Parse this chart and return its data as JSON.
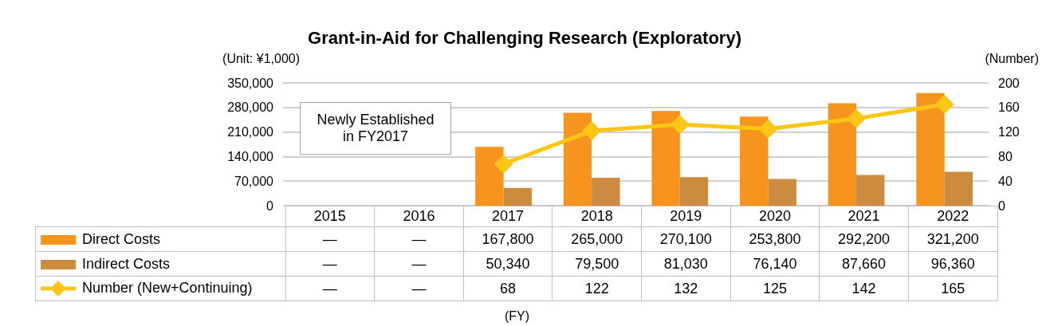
{
  "chart_data": {
    "type": "bar",
    "title": "Grant-in-Aid for Challenging Research (Exploratory)",
    "ylabel": "(Unit: ¥1,000)",
    "y2label": "(Number)",
    "categories": [
      "2015",
      "2016",
      "2017",
      "2018",
      "2019",
      "2020",
      "2021",
      "2022"
    ],
    "series": [
      {
        "name": "Direct Costs",
        "color": "#f7941d",
        "values": [
          null,
          null,
          167800,
          265000,
          270100,
          253800,
          292200,
          321200
        ],
        "value_labels": [
          "—",
          "—",
          "167,800",
          "265,000",
          "270,100",
          "253,800",
          "292,200",
          "321,200"
        ]
      },
      {
        "name": "Indirect Costs",
        "color": "#cd8b40",
        "values": [
          null,
          null,
          50340,
          79500,
          81030,
          76140,
          87660,
          96360
        ],
        "value_labels": [
          "—",
          "—",
          "50,340",
          "79,500",
          "81,030",
          "76,140",
          "87,660",
          "96,360"
        ]
      },
      {
        "name": "Number (New+Continuing)",
        "type": "line",
        "axis": "y2",
        "color": "#fcc614",
        "values": [
          null,
          null,
          68,
          122,
          132,
          125,
          142,
          165
        ],
        "value_labels": [
          "—",
          "—",
          "68",
          "122",
          "132",
          "125",
          "142",
          "165"
        ]
      }
    ],
    "ylim": [
      0,
      350000
    ],
    "yticks": [
      {
        "value": 0,
        "label": "0"
      },
      {
        "value": 70000,
        "label": "70,000"
      },
      {
        "value": 140000,
        "label": "140,000"
      },
      {
        "value": 210000,
        "label": "210,000"
      },
      {
        "value": 280000,
        "label": "280,000"
      },
      {
        "value": 350000,
        "label": "350,000"
      }
    ],
    "y2lim": [
      0,
      200
    ],
    "y2ticks": [
      0,
      40,
      80,
      120,
      160,
      200
    ],
    "annotations": [
      "Newly Established\nin FY2017",
      "(FY)"
    ],
    "grid": "y",
    "legend": "bottom",
    "marker": "diamond",
    "line_style": "solid"
  }
}
